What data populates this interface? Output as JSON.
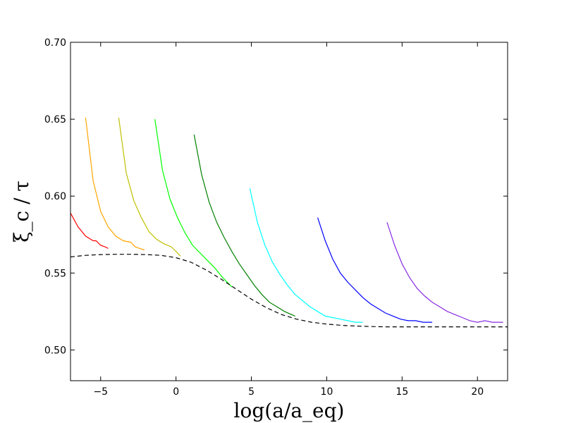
{
  "chart_data": {
    "type": "line",
    "title": "",
    "xlabel": "log(a/a_eq)",
    "ylabel": "ξ_c / τ",
    "xlim": [
      -7,
      22
    ],
    "ylim": [
      0.48,
      0.7
    ],
    "grid": false,
    "legend": "none",
    "xticks": [
      -5,
      0,
      5,
      10,
      15,
      20
    ],
    "xtick_labels": [
      "−5",
      "0",
      "5",
      "10",
      "15",
      "20"
    ],
    "yticks": [
      0.5,
      0.55,
      0.6,
      0.65,
      0.7
    ],
    "ytick_labels": [
      "0.50",
      "0.55",
      "0.60",
      "0.65",
      "0.70"
    ],
    "series": [
      {
        "color": "#ff0000",
        "style": "solid",
        "x": [
          -7.0,
          -6.5,
          -6.0,
          -5.5,
          -5.3,
          -5.0,
          -4.7,
          -4.5
        ],
        "y": [
          0.589,
          0.58,
          0.574,
          0.571,
          0.571,
          0.568,
          0.567,
          0.566
        ]
      },
      {
        "color": "#ffa500",
        "style": "solid",
        "x": [
          -6.0,
          -5.5,
          -5.0,
          -4.5,
          -4.0,
          -3.5,
          -3.0,
          -2.7,
          -2.4,
          -2.1
        ],
        "y": [
          0.651,
          0.61,
          0.59,
          0.58,
          0.574,
          0.571,
          0.57,
          0.567,
          0.566,
          0.565
        ]
      },
      {
        "color": "#bfbf00",
        "style": "solid",
        "x": [
          -3.8,
          -3.3,
          -2.8,
          -2.3,
          -1.8,
          -1.3,
          -0.8,
          -0.3,
          0.0,
          0.3
        ],
        "y": [
          0.651,
          0.615,
          0.597,
          0.586,
          0.577,
          0.572,
          0.569,
          0.567,
          0.564,
          0.561
        ]
      },
      {
        "color": "#00ff00",
        "style": "solid",
        "x": [
          -1.4,
          -0.9,
          -0.4,
          0.1,
          0.6,
          1.1,
          1.6,
          2.1,
          2.6,
          3.1,
          3.7
        ],
        "y": [
          0.65,
          0.617,
          0.598,
          0.586,
          0.576,
          0.568,
          0.563,
          0.558,
          0.553,
          0.547,
          0.541
        ]
      },
      {
        "color": "#008000",
        "style": "solid",
        "x": [
          1.2,
          1.7,
          2.2,
          2.7,
          3.2,
          3.7,
          4.2,
          4.7,
          5.2,
          5.7,
          6.2,
          6.7,
          7.2,
          7.9
        ],
        "y": [
          0.64,
          0.614,
          0.596,
          0.583,
          0.573,
          0.564,
          0.556,
          0.549,
          0.542,
          0.536,
          0.531,
          0.528,
          0.525,
          0.522
        ]
      },
      {
        "color": "#00ffff",
        "style": "solid",
        "x": [
          4.9,
          5.4,
          5.9,
          6.4,
          6.9,
          7.4,
          7.9,
          8.4,
          8.9,
          9.4,
          9.9,
          10.4,
          10.9,
          11.4,
          11.9,
          12.4
        ],
        "y": [
          0.605,
          0.583,
          0.568,
          0.557,
          0.549,
          0.542,
          0.536,
          0.532,
          0.528,
          0.525,
          0.522,
          0.521,
          0.52,
          0.519,
          0.518,
          0.518
        ]
      },
      {
        "color": "#0000ff",
        "style": "solid",
        "x": [
          9.4,
          9.9,
          10.4,
          10.9,
          11.4,
          11.9,
          12.4,
          12.9,
          13.4,
          13.9,
          14.4,
          14.9,
          15.4,
          15.9,
          16.4,
          17.0
        ],
        "y": [
          0.586,
          0.571,
          0.559,
          0.55,
          0.544,
          0.539,
          0.534,
          0.53,
          0.527,
          0.524,
          0.522,
          0.52,
          0.519,
          0.519,
          0.518,
          0.518
        ]
      },
      {
        "color": "#8a2be2",
        "style": "solid",
        "x": [
          14.0,
          14.5,
          15.0,
          15.5,
          16.0,
          16.5,
          17.0,
          17.5,
          18.0,
          18.5,
          19.0,
          19.5,
          20.0,
          20.5,
          21.0,
          21.7
        ],
        "y": [
          0.583,
          0.568,
          0.556,
          0.547,
          0.54,
          0.535,
          0.531,
          0.528,
          0.525,
          0.523,
          0.521,
          0.519,
          0.518,
          0.519,
          0.518,
          0.518
        ]
      },
      {
        "color": "#000000",
        "style": "dashed",
        "x": [
          -7,
          -6,
          -5,
          -4,
          -3,
          -2,
          -1,
          0,
          1,
          2,
          3,
          4,
          5,
          6,
          7,
          8,
          9,
          10,
          11,
          12,
          13,
          14,
          15,
          16,
          17,
          18,
          19,
          20,
          21,
          22
        ],
        "y": [
          0.5605,
          0.5615,
          0.562,
          0.5622,
          0.5622,
          0.562,
          0.5615,
          0.56,
          0.557,
          0.552,
          0.546,
          0.5395,
          0.533,
          0.5275,
          0.523,
          0.52,
          0.518,
          0.5168,
          0.516,
          0.5155,
          0.5152,
          0.515,
          0.515,
          0.515,
          0.515,
          0.515,
          0.515,
          0.515,
          0.515,
          0.515
        ]
      }
    ]
  }
}
